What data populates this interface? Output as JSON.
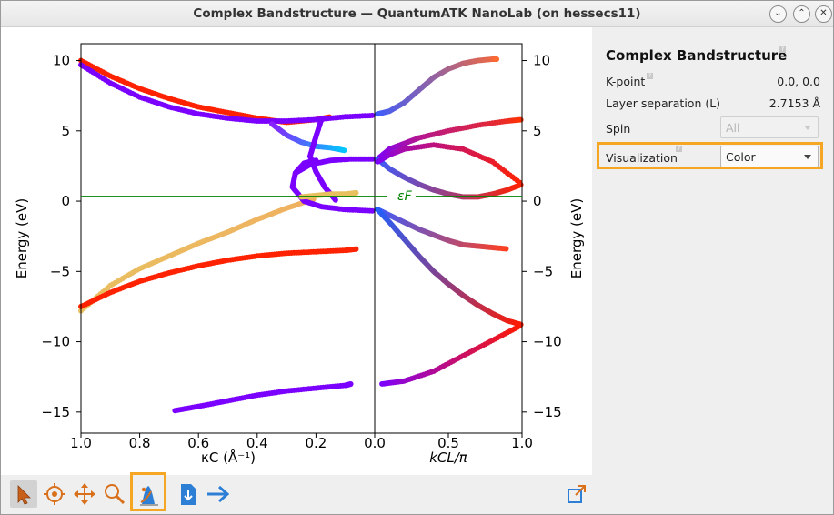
{
  "window": {
    "title": "Complex Bandstructure — QuantumATK NanoLab (on hessecs11)",
    "buttons": [
      "minimize",
      "maximize",
      "close"
    ]
  },
  "plot": {
    "ylabel_left": "Energy (eV)",
    "ylabel_right": "Energy (eV)",
    "xlabel_left": "κC (Å⁻¹)",
    "xlabel_right": "kCL/π",
    "fermi_label": "εF",
    "fermi_color": "#008000",
    "left_xticks": [
      "1.0",
      "0.8",
      "0.6",
      "0.4",
      "0.2",
      "0.0"
    ],
    "right_xticks": [
      "0.0",
      "0.5",
      "1.0"
    ],
    "yticks": [
      "10",
      "5",
      "0",
      "−5",
      "−10",
      "−15"
    ]
  },
  "chart_data": {
    "type": "scatter",
    "title": "",
    "ylabel": "Energy (eV)",
    "ylim": [
      -16.5,
      11.2
    ],
    "yticks": [
      10,
      5,
      0,
      -5,
      -10,
      -15
    ],
    "panels": [
      {
        "name": "imaginary",
        "xlabel": "κC (Å⁻¹)",
        "xlim": [
          1.0,
          0.0
        ],
        "xticks": [
          1.0,
          0.8,
          0.6,
          0.4,
          0.2,
          0.0
        ]
      },
      {
        "name": "real",
        "xlabel": "kCL/π",
        "xlim": [
          0.0,
          1.0
        ],
        "xticks": [
          0.0,
          0.5,
          1.0
        ]
      }
    ],
    "fermi_level": 0,
    "bands": [
      {
        "panel": "imaginary",
        "x": [
          1.0,
          0.9,
          0.8,
          0.7,
          0.6,
          0.5,
          0.4,
          0.3,
          0.2,
          0.15
        ],
        "y": [
          10.0,
          8.9,
          8.0,
          7.3,
          6.7,
          6.3,
          5.9,
          5.6,
          5.8,
          6.0
        ],
        "color_from": "#ff2200",
        "color_to": "#ff2200"
      },
      {
        "panel": "imaginary",
        "x": [
          1.0,
          0.9,
          0.8,
          0.7,
          0.6,
          0.5,
          0.4,
          0.3,
          0.2,
          0.1,
          0.0
        ],
        "y": [
          9.7,
          8.4,
          7.4,
          6.7,
          6.2,
          5.9,
          5.7,
          5.7,
          5.8,
          6.0,
          6.1
        ],
        "color_from": "#7a00ff",
        "color_to": "#7a00ff"
      },
      {
        "panel": "imaginary",
        "x": [
          1.0,
          0.9,
          0.8,
          0.7,
          0.6,
          0.5,
          0.4,
          0.3,
          0.2
        ],
        "y": [
          -7.8,
          -6.0,
          -4.8,
          -3.9,
          -3.0,
          -2.2,
          -1.3,
          -0.5,
          0.2
        ],
        "color_from": "#e8c060",
        "color_to": "#f0b060"
      },
      {
        "panel": "imaginary",
        "x": [
          1.0,
          0.9,
          0.8,
          0.7,
          0.6,
          0.5,
          0.4,
          0.3,
          0.2,
          0.1,
          0.06
        ],
        "y": [
          -7.5,
          -6.5,
          -5.7,
          -5.1,
          -4.6,
          -4.2,
          -3.9,
          -3.7,
          -3.6,
          -3.5,
          -3.4
        ],
        "color_from": "#ff2200",
        "color_to": "#ff2200"
      },
      {
        "panel": "imaginary",
        "x": [
          0.68,
          0.6,
          0.5,
          0.4,
          0.3,
          0.2,
          0.1,
          0.08
        ],
        "y": [
          -14.9,
          -14.6,
          -14.2,
          -13.8,
          -13.5,
          -13.3,
          -13.1,
          -13.0
        ],
        "color_from": "#7a00ff",
        "color_to": "#7a00ff"
      },
      {
        "panel": "imaginary",
        "x": [
          0.35,
          0.3,
          0.25,
          0.2,
          0.15,
          0.1
        ],
        "y": [
          5.5,
          4.7,
          4.2,
          3.9,
          3.8,
          3.6
        ],
        "color_from": "#8a20ff",
        "color_to": "#00c8ff"
      },
      {
        "panel": "imaginary",
        "x": [
          0.18,
          0.2,
          0.22,
          0.2,
          0.17,
          0.13
        ],
        "y": [
          5.9,
          4.6,
          3.2,
          2.1,
          1.0,
          0.0
        ],
        "color_from": "#7a00ff",
        "color_to": "#7a00ff"
      },
      {
        "panel": "imaginary",
        "x": [
          0.2,
          0.24,
          0.27,
          0.28,
          0.24,
          0.18,
          0.1,
          0.0
        ],
        "y": [
          2.9,
          2.7,
          2.0,
          1.0,
          0.0,
          -0.4,
          -0.6,
          -0.7
        ],
        "color_from": "#7a00ff",
        "color_to": "#7a00ff"
      },
      {
        "panel": "imaginary",
        "x": [
          0.27,
          0.22,
          0.15,
          0.08,
          0.0
        ],
        "y": [
          2.0,
          2.6,
          2.9,
          3.0,
          3.0
        ],
        "color_from": "#7a00ff",
        "color_to": "#7a00ff"
      },
      {
        "panel": "imaginary",
        "x": [
          0.25,
          0.2,
          0.15,
          0.1,
          0.06
        ],
        "y": [
          0.3,
          0.4,
          0.5,
          0.5,
          0.6
        ],
        "color_from": "#e8c060",
        "color_to": "#e8c060"
      },
      {
        "panel": "real",
        "x": [
          0.02,
          0.1,
          0.2,
          0.3,
          0.4,
          0.5,
          0.6,
          0.7,
          0.8,
          0.83
        ],
        "y": [
          6.2,
          6.4,
          7.0,
          7.9,
          8.8,
          9.4,
          9.8,
          10.0,
          10.1,
          10.1
        ],
        "color_from": "#3a5cff",
        "color_to": "#ff6a30"
      },
      {
        "panel": "real",
        "x": [
          0.02,
          0.1,
          0.2,
          0.3,
          0.5,
          0.7,
          0.9,
          1.0
        ],
        "y": [
          3.0,
          3.7,
          4.1,
          4.5,
          5.0,
          5.4,
          5.7,
          5.8
        ],
        "color_from": "#7a00ff",
        "color_to": "#ff3300"
      },
      {
        "panel": "real",
        "x": [
          0.02,
          0.1,
          0.2,
          0.3,
          0.4,
          0.5,
          0.6,
          0.7,
          0.8,
          0.9,
          1.0
        ],
        "y": [
          3.0,
          2.3,
          1.7,
          1.2,
          0.8,
          0.5,
          0.3,
          0.3,
          0.5,
          0.8,
          1.2
        ],
        "color_from": "#3a5cff",
        "color_to": "#ff2200"
      },
      {
        "panel": "real",
        "x": [
          0.02,
          0.1,
          0.2,
          0.4,
          0.6,
          0.8,
          1.0
        ],
        "y": [
          2.8,
          3.3,
          3.7,
          4.0,
          3.7,
          2.8,
          1.2
        ],
        "color_from": "#7a00ff",
        "color_to": "#ff2200"
      },
      {
        "panel": "real",
        "x": [
          0.02,
          0.1,
          0.2,
          0.3,
          0.4,
          0.5,
          0.6,
          0.7,
          0.8,
          0.9
        ],
        "y": [
          -0.6,
          -1.0,
          -1.5,
          -2.0,
          -2.4,
          -2.8,
          -3.1,
          -3.2,
          -3.3,
          -3.4
        ],
        "color_from": "#3a5cff",
        "color_to": "#ff4020"
      },
      {
        "panel": "real",
        "x": [
          0.02,
          0.1,
          0.2,
          0.3,
          0.4,
          0.5,
          0.6,
          0.7,
          0.8,
          0.9,
          1.0
        ],
        "y": [
          -0.6,
          -1.5,
          -2.7,
          -3.9,
          -5.0,
          -5.9,
          -6.7,
          -7.4,
          -8.0,
          -8.5,
          -8.8
        ],
        "color_from": "#2060ff",
        "color_to": "#ff1a00"
      },
      {
        "panel": "real",
        "x": [
          0.05,
          0.2,
          0.4,
          0.6,
          0.8,
          1.0
        ],
        "y": [
          -13.0,
          -12.8,
          -12.1,
          -11.0,
          -9.9,
          -8.8
        ],
        "color_from": "#7a00ff",
        "color_to": "#ff1a00"
      }
    ],
    "grid": false
  },
  "panel": {
    "title": "Complex Bandstructure",
    "kpoint_label": "K-point",
    "kpoint_value": "0.0, 0.0",
    "layer_label": "Layer separation (L)",
    "layer_value": "2.7153 Å",
    "spin_label": "Spin",
    "spin_value": "All",
    "visualization_label": "Visualization",
    "visualization_value": "Color"
  },
  "toolbar": {
    "tools": [
      "pointer-icon",
      "target-icon",
      "pan-icon",
      "zoom-icon",
      "colormap-icon",
      "export-icon",
      "forward-icon"
    ],
    "highlight_color": "#f5a623"
  }
}
